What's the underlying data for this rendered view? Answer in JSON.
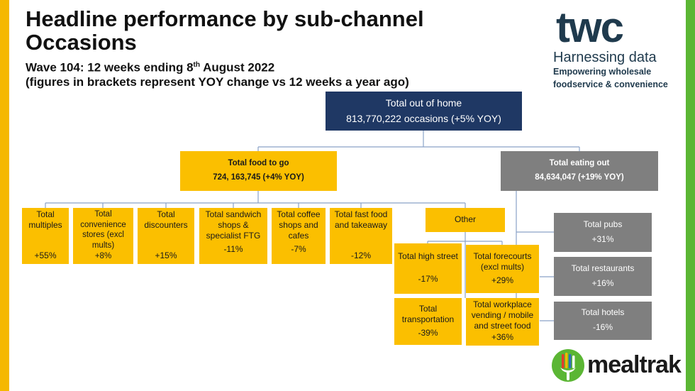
{
  "header": {
    "title": "Headline performance by sub-channel Occasions",
    "wave_prefix": "Wave 104: 12 weeks ending 8",
    "wave_sup": "th",
    "wave_suffix": " August 2022",
    "note": "(figures in brackets represent YOY change vs 12 weeks a year ago)"
  },
  "logos": {
    "twc_word": "twc",
    "twc_harnessing": "Harnessing data",
    "twc_tagline1": "Empowering wholesale",
    "twc_tagline2": "foodservice & convenience",
    "mealtrak": "mealtrak"
  },
  "tree": {
    "root": {
      "label": "Total out of home",
      "value": "813,770,222 occasions (+5% YOY)"
    },
    "food_to_go": {
      "label": "Total food to go",
      "value": "724, 163,745 (+4% YOY)"
    },
    "eating_out": {
      "label": "Total eating out",
      "value": "84,634,047 (+19% YOY)"
    },
    "ftg_children": [
      {
        "label": "Total multiples",
        "value": "+55%"
      },
      {
        "label": "Total convenience stores (excl mults)",
        "value": "+8%"
      },
      {
        "label": "Total discounters",
        "value": "+15%"
      },
      {
        "label": "Total sandwich shops & specialist FTG",
        "value": "-11%"
      },
      {
        "label": "Total coffee shops and cafes",
        "value": "-7%"
      },
      {
        "label": "Total fast food and takeaway",
        "value": "-12%"
      }
    ],
    "other": {
      "label": "Other"
    },
    "other_children": [
      {
        "label": "Total high street",
        "value": "-17%"
      },
      {
        "label": "Total forecourts (excl mults)",
        "value": "+29%"
      },
      {
        "label": "Total transportation",
        "value": "-39%"
      },
      {
        "label": "Total workplace vending / mobile and street food",
        "value": "+36%"
      }
    ],
    "eo_children": [
      {
        "label": "Total pubs",
        "value": "+31%"
      },
      {
        "label": "Total restaurants",
        "value": "+16%"
      },
      {
        "label": "Total hotels",
        "value": "-16%"
      }
    ]
  },
  "colors": {
    "yellow": "#fbbf00",
    "grey": "#7f7f7f",
    "navy": "#1f3864",
    "connector": "#8aa2c8"
  }
}
